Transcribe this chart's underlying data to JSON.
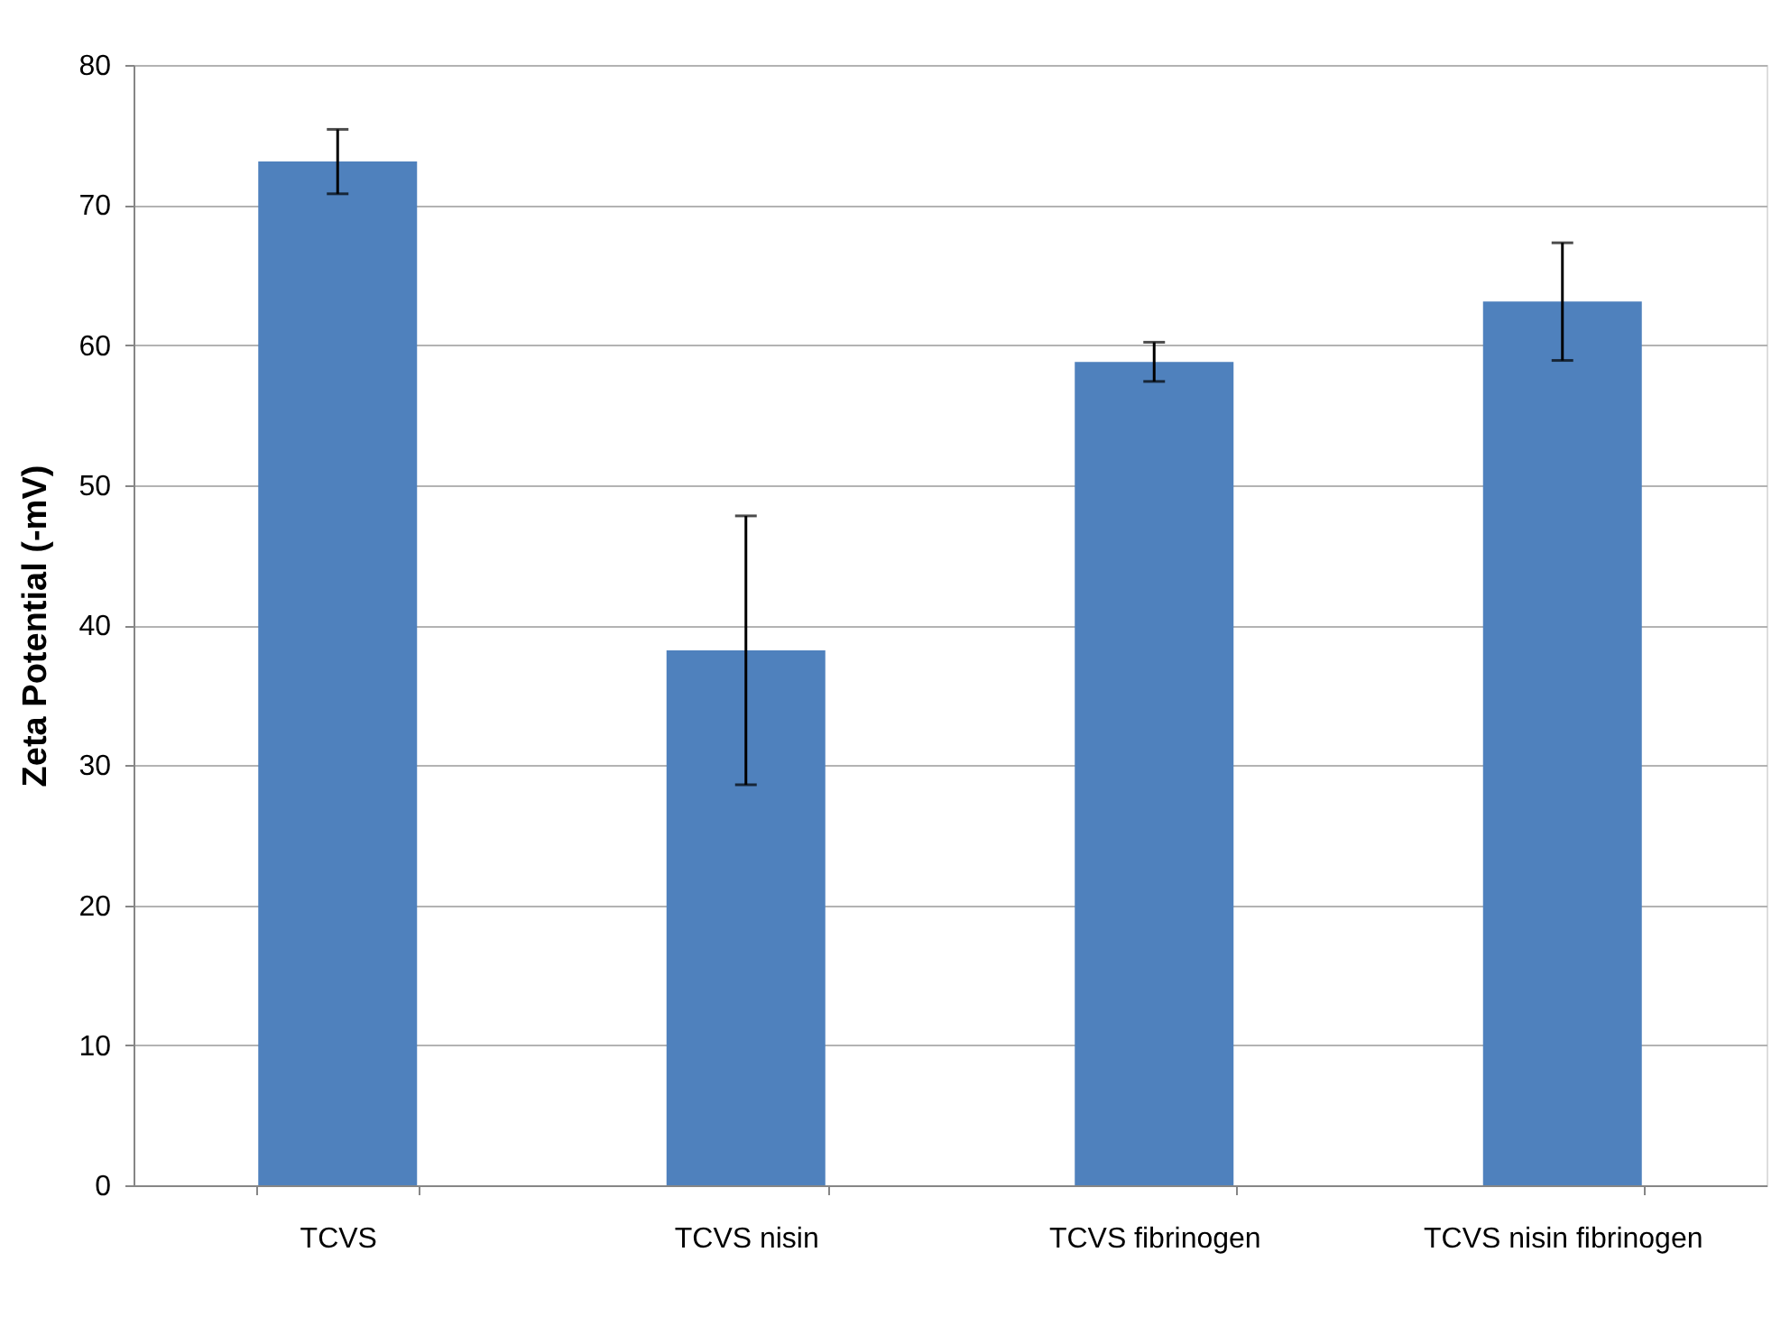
{
  "chart_data": {
    "type": "bar",
    "ylabel": "Zeta Potential (-mV)",
    "categories": [
      "TCVS",
      "TCVS nisin",
      "TCVS fibrinogen",
      "TCVS nisin fibrinogen"
    ],
    "values": [
      73.1,
      38.2,
      58.8,
      63.1
    ],
    "errors": [
      2.3,
      9.6,
      1.4,
      4.2
    ],
    "color": "#4f81bd",
    "ylim": [
      0,
      80
    ],
    "yticks": [
      0,
      10,
      20,
      30,
      40,
      50,
      60,
      70,
      80
    ],
    "grid": "y"
  }
}
